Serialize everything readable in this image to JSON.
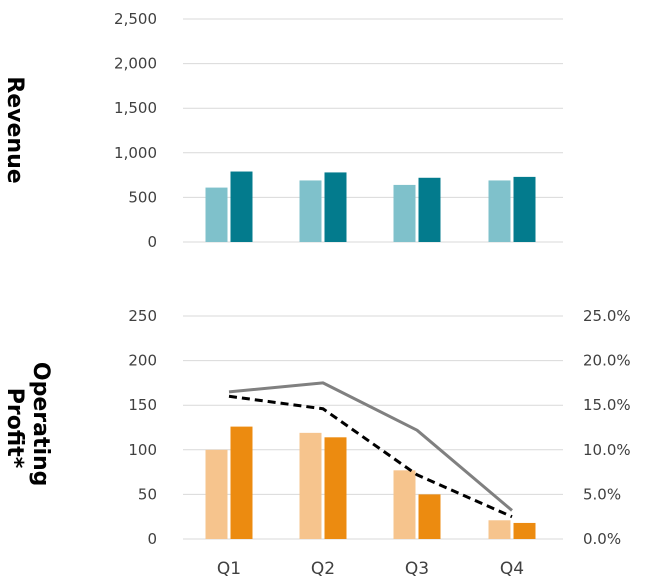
{
  "colors": {
    "revenue_light": "#7fc1cb",
    "revenue_dark": "#037b8d",
    "profit_light": "#f6c48d",
    "profit_dark": "#ec8b10",
    "margin_solid": "#808080",
    "margin_dashed": "#000000",
    "grid": "#d9d9d9",
    "tick_text": "#404040"
  },
  "chart_data": [
    {
      "type": "bar",
      "ylabel": "Revenue",
      "categories": [
        "Q1",
        "Q2",
        "Q3",
        "Q4"
      ],
      "ylim": [
        0,
        2500
      ],
      "yticks": [
        "0",
        "500",
        "1,000",
        "1,500",
        "2,000",
        "2,500"
      ],
      "grid": true,
      "series": [
        {
          "values": [
            610,
            690,
            640,
            690
          ]
        },
        {
          "values": [
            790,
            780,
            720,
            730
          ]
        }
      ]
    },
    {
      "type": "bar",
      "ylabel": "Operating Profit*",
      "categories": [
        "Q1",
        "Q2",
        "Q3",
        "Q4"
      ],
      "ylim": [
        0,
        250
      ],
      "yticks": [
        "0",
        "50",
        "100",
        "150",
        "200",
        "250"
      ],
      "y2lim": [
        0,
        25
      ],
      "y2ticks": [
        "0.0%",
        "5.0%",
        "10.0%",
        "15.0%",
        "20.0%",
        "25.0%"
      ],
      "grid": true,
      "series": [
        {
          "values": [
            100,
            119,
            77,
            21
          ]
        },
        {
          "values": [
            126,
            114,
            50,
            18
          ]
        }
      ],
      "line_series": [
        {
          "style": "solid",
          "values": [
            16.5,
            17.5,
            12.2,
            3.2
          ]
        },
        {
          "style": "dashed",
          "values": [
            16.0,
            14.6,
            7.2,
            2.5
          ]
        }
      ]
    }
  ]
}
